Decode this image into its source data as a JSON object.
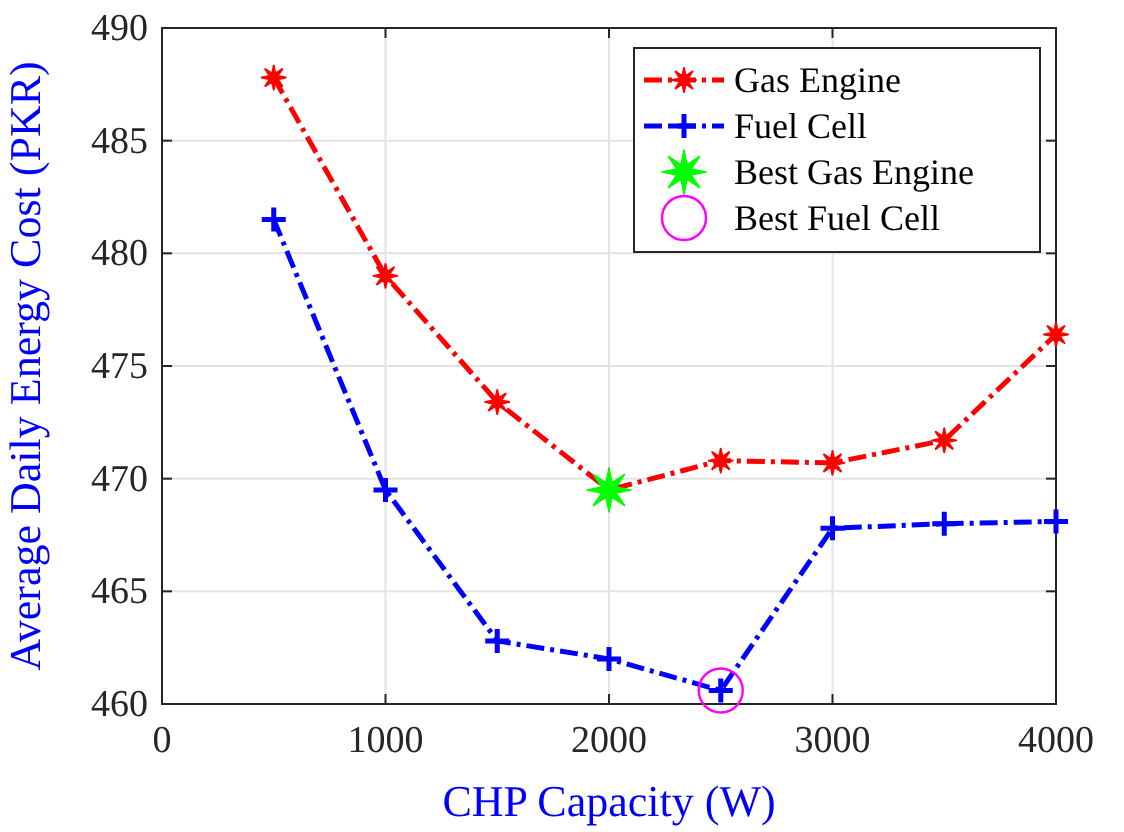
{
  "chart_data": {
    "type": "line",
    "xlabel": "CHP Capacity (W)",
    "ylabel": "Average Daily Energy Cost (PKR)",
    "x": [
      500,
      1000,
      1500,
      2000,
      2500,
      3000,
      3500,
      4000
    ],
    "series": [
      {
        "name": "Gas Engine",
        "color": "#ff0000",
        "marker": "star",
        "line_style": "dashed",
        "values": [
          487.8,
          479.0,
          473.4,
          469.5,
          470.8,
          470.7,
          471.7,
          476.4
        ]
      },
      {
        "name": "Fuel Cell",
        "color": "#0000ff",
        "marker": "cross",
        "line_style": "dashed",
        "values": [
          481.5,
          469.5,
          462.8,
          462.0,
          460.6,
          467.8,
          468.0,
          468.1
        ]
      },
      {
        "name": "Best Gas Engine",
        "type": "scatter",
        "color": "#00ff00",
        "marker": "star",
        "x": [
          2000
        ],
        "values": [
          469.5
        ]
      },
      {
        "name": "Best Fuel Cell",
        "type": "scatter",
        "color": "#ff00ff",
        "marker": "circle",
        "x": [
          2500
        ],
        "values": [
          460.6
        ]
      }
    ],
    "xlim": [
      0,
      4000
    ],
    "xticks": [
      0,
      1000,
      2000,
      3000,
      4000
    ],
    "ylim": [
      460,
      490
    ],
    "yticks": [
      460,
      465,
      470,
      475,
      480,
      485,
      490
    ],
    "grid": true,
    "legend": "top right"
  }
}
